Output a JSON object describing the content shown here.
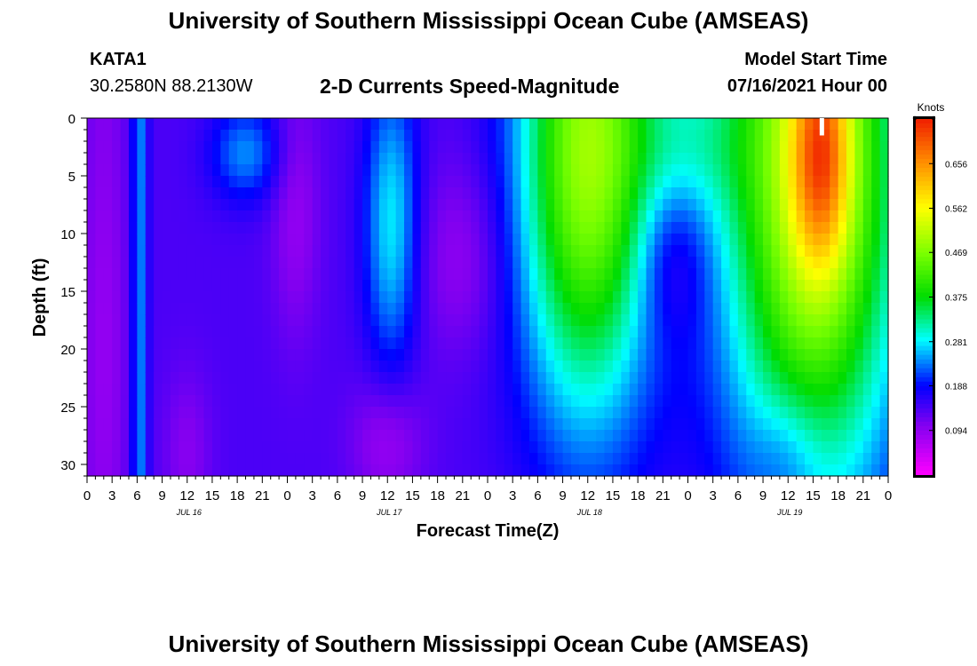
{
  "header": {
    "title": "University of Southern Mississippi Ocean Cube (AMSEAS)",
    "station_id": "KATA1",
    "coords": "30.2580N  88.2130W",
    "subtitle": "2-D Currents Speed-Magnitude",
    "model_start_label": "Model Start Time",
    "model_start_value": "07/16/2021 Hour 00"
  },
  "footer": {
    "title": "University of Southern Mississippi Ocean Cube (AMSEAS)"
  },
  "chart_data": {
    "type": "heatmap",
    "xlabel": "Forecast Time(Z)",
    "ylabel": "Depth (ft)",
    "xlim": [
      0,
      96
    ],
    "ylim": [
      31,
      0
    ],
    "y_ticks": [
      0,
      5,
      10,
      15,
      20,
      25,
      30
    ],
    "x_ticks": [
      "0",
      "3",
      "6",
      "9",
      "12",
      "15",
      "18",
      "21",
      "0",
      "3",
      "6",
      "9",
      "12",
      "15",
      "18",
      "21",
      "0",
      "3",
      "6",
      "9",
      "12",
      "15",
      "18",
      "21",
      "0",
      "3",
      "6",
      "9",
      "12",
      "15",
      "18",
      "21",
      "0"
    ],
    "date_labels": [
      {
        "hour": 12,
        "label": "JUL 16"
      },
      {
        "hour": 36,
        "label": "JUL 17"
      },
      {
        "hour": 60,
        "label": "JUL 18"
      },
      {
        "hour": 84,
        "label": "JUL 19"
      }
    ],
    "colorbar": {
      "units": "Knots",
      "min": 0.0,
      "max": 0.75,
      "ticks": [
        "0.656",
        "0.562",
        "0.469",
        "0.375",
        "0.281",
        "0.188",
        "0.094"
      ],
      "tick_values": [
        0.656,
        0.562,
        0.469,
        0.375,
        0.281,
        0.188,
        0.094
      ]
    },
    "marker": {
      "hour": 88,
      "depth": 1
    },
    "approx_features": [
      {
        "name": "max speed core",
        "hour": 88,
        "depth": 3,
        "value": 0.7
      },
      {
        "name": "surface jet day 3",
        "hour": 60,
        "depth": 3,
        "value": 0.46
      },
      {
        "name": "cyan band day 2",
        "hour": 36,
        "depth": 10,
        "value": 0.27
      },
      {
        "name": "narrow band",
        "hour": 6,
        "depth": 15,
        "value": 0.22
      }
    ]
  }
}
